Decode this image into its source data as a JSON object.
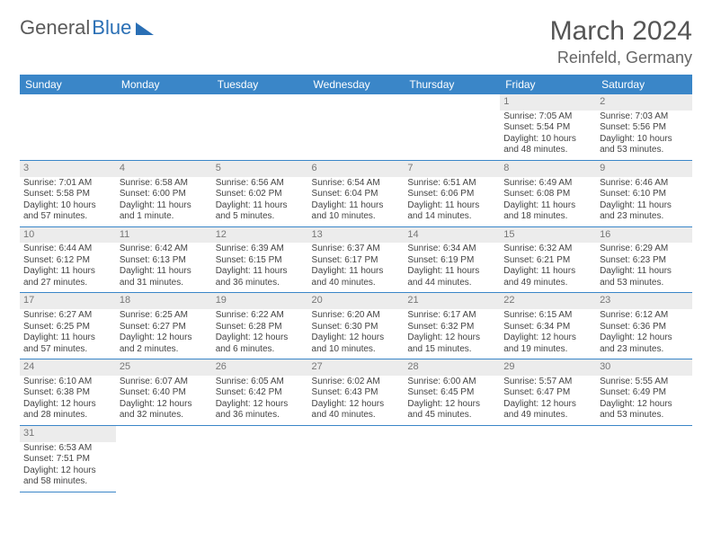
{
  "logo": {
    "text1": "General",
    "text2": "Blue"
  },
  "header": {
    "month": "March 2024",
    "location": "Reinfeld, Germany"
  },
  "colors": {
    "header_bg": "#3a86c8",
    "shade_bg": "#ececec",
    "rule": "#3a86c8"
  },
  "weekdays": [
    "Sunday",
    "Monday",
    "Tuesday",
    "Wednesday",
    "Thursday",
    "Friday",
    "Saturday"
  ],
  "weeks": [
    [
      null,
      null,
      null,
      null,
      null,
      {
        "n": "1",
        "sr": "Sunrise: 7:05 AM",
        "ss": "Sunset: 5:54 PM",
        "d1": "Daylight: 10 hours",
        "d2": "and 48 minutes."
      },
      {
        "n": "2",
        "sr": "Sunrise: 7:03 AM",
        "ss": "Sunset: 5:56 PM",
        "d1": "Daylight: 10 hours",
        "d2": "and 53 minutes."
      }
    ],
    [
      {
        "n": "3",
        "sr": "Sunrise: 7:01 AM",
        "ss": "Sunset: 5:58 PM",
        "d1": "Daylight: 10 hours",
        "d2": "and 57 minutes."
      },
      {
        "n": "4",
        "sr": "Sunrise: 6:58 AM",
        "ss": "Sunset: 6:00 PM",
        "d1": "Daylight: 11 hours",
        "d2": "and 1 minute."
      },
      {
        "n": "5",
        "sr": "Sunrise: 6:56 AM",
        "ss": "Sunset: 6:02 PM",
        "d1": "Daylight: 11 hours",
        "d2": "and 5 minutes."
      },
      {
        "n": "6",
        "sr": "Sunrise: 6:54 AM",
        "ss": "Sunset: 6:04 PM",
        "d1": "Daylight: 11 hours",
        "d2": "and 10 minutes."
      },
      {
        "n": "7",
        "sr": "Sunrise: 6:51 AM",
        "ss": "Sunset: 6:06 PM",
        "d1": "Daylight: 11 hours",
        "d2": "and 14 minutes."
      },
      {
        "n": "8",
        "sr": "Sunrise: 6:49 AM",
        "ss": "Sunset: 6:08 PM",
        "d1": "Daylight: 11 hours",
        "d2": "and 18 minutes."
      },
      {
        "n": "9",
        "sr": "Sunrise: 6:46 AM",
        "ss": "Sunset: 6:10 PM",
        "d1": "Daylight: 11 hours",
        "d2": "and 23 minutes."
      }
    ],
    [
      {
        "n": "10",
        "sr": "Sunrise: 6:44 AM",
        "ss": "Sunset: 6:12 PM",
        "d1": "Daylight: 11 hours",
        "d2": "and 27 minutes."
      },
      {
        "n": "11",
        "sr": "Sunrise: 6:42 AM",
        "ss": "Sunset: 6:13 PM",
        "d1": "Daylight: 11 hours",
        "d2": "and 31 minutes."
      },
      {
        "n": "12",
        "sr": "Sunrise: 6:39 AM",
        "ss": "Sunset: 6:15 PM",
        "d1": "Daylight: 11 hours",
        "d2": "and 36 minutes."
      },
      {
        "n": "13",
        "sr": "Sunrise: 6:37 AM",
        "ss": "Sunset: 6:17 PM",
        "d1": "Daylight: 11 hours",
        "d2": "and 40 minutes."
      },
      {
        "n": "14",
        "sr": "Sunrise: 6:34 AM",
        "ss": "Sunset: 6:19 PM",
        "d1": "Daylight: 11 hours",
        "d2": "and 44 minutes."
      },
      {
        "n": "15",
        "sr": "Sunrise: 6:32 AM",
        "ss": "Sunset: 6:21 PM",
        "d1": "Daylight: 11 hours",
        "d2": "and 49 minutes."
      },
      {
        "n": "16",
        "sr": "Sunrise: 6:29 AM",
        "ss": "Sunset: 6:23 PM",
        "d1": "Daylight: 11 hours",
        "d2": "and 53 minutes."
      }
    ],
    [
      {
        "n": "17",
        "sr": "Sunrise: 6:27 AM",
        "ss": "Sunset: 6:25 PM",
        "d1": "Daylight: 11 hours",
        "d2": "and 57 minutes."
      },
      {
        "n": "18",
        "sr": "Sunrise: 6:25 AM",
        "ss": "Sunset: 6:27 PM",
        "d1": "Daylight: 12 hours",
        "d2": "and 2 minutes."
      },
      {
        "n": "19",
        "sr": "Sunrise: 6:22 AM",
        "ss": "Sunset: 6:28 PM",
        "d1": "Daylight: 12 hours",
        "d2": "and 6 minutes."
      },
      {
        "n": "20",
        "sr": "Sunrise: 6:20 AM",
        "ss": "Sunset: 6:30 PM",
        "d1": "Daylight: 12 hours",
        "d2": "and 10 minutes."
      },
      {
        "n": "21",
        "sr": "Sunrise: 6:17 AM",
        "ss": "Sunset: 6:32 PM",
        "d1": "Daylight: 12 hours",
        "d2": "and 15 minutes."
      },
      {
        "n": "22",
        "sr": "Sunrise: 6:15 AM",
        "ss": "Sunset: 6:34 PM",
        "d1": "Daylight: 12 hours",
        "d2": "and 19 minutes."
      },
      {
        "n": "23",
        "sr": "Sunrise: 6:12 AM",
        "ss": "Sunset: 6:36 PM",
        "d1": "Daylight: 12 hours",
        "d2": "and 23 minutes."
      }
    ],
    [
      {
        "n": "24",
        "sr": "Sunrise: 6:10 AM",
        "ss": "Sunset: 6:38 PM",
        "d1": "Daylight: 12 hours",
        "d2": "and 28 minutes."
      },
      {
        "n": "25",
        "sr": "Sunrise: 6:07 AM",
        "ss": "Sunset: 6:40 PM",
        "d1": "Daylight: 12 hours",
        "d2": "and 32 minutes."
      },
      {
        "n": "26",
        "sr": "Sunrise: 6:05 AM",
        "ss": "Sunset: 6:42 PM",
        "d1": "Daylight: 12 hours",
        "d2": "and 36 minutes."
      },
      {
        "n": "27",
        "sr": "Sunrise: 6:02 AM",
        "ss": "Sunset: 6:43 PM",
        "d1": "Daylight: 12 hours",
        "d2": "and 40 minutes."
      },
      {
        "n": "28",
        "sr": "Sunrise: 6:00 AM",
        "ss": "Sunset: 6:45 PM",
        "d1": "Daylight: 12 hours",
        "d2": "and 45 minutes."
      },
      {
        "n": "29",
        "sr": "Sunrise: 5:57 AM",
        "ss": "Sunset: 6:47 PM",
        "d1": "Daylight: 12 hours",
        "d2": "and 49 minutes."
      },
      {
        "n": "30",
        "sr": "Sunrise: 5:55 AM",
        "ss": "Sunset: 6:49 PM",
        "d1": "Daylight: 12 hours",
        "d2": "and 53 minutes."
      }
    ],
    [
      {
        "n": "31",
        "sr": "Sunrise: 6:53 AM",
        "ss": "Sunset: 7:51 PM",
        "d1": "Daylight: 12 hours",
        "d2": "and 58 minutes."
      },
      null,
      null,
      null,
      null,
      null,
      null
    ]
  ]
}
